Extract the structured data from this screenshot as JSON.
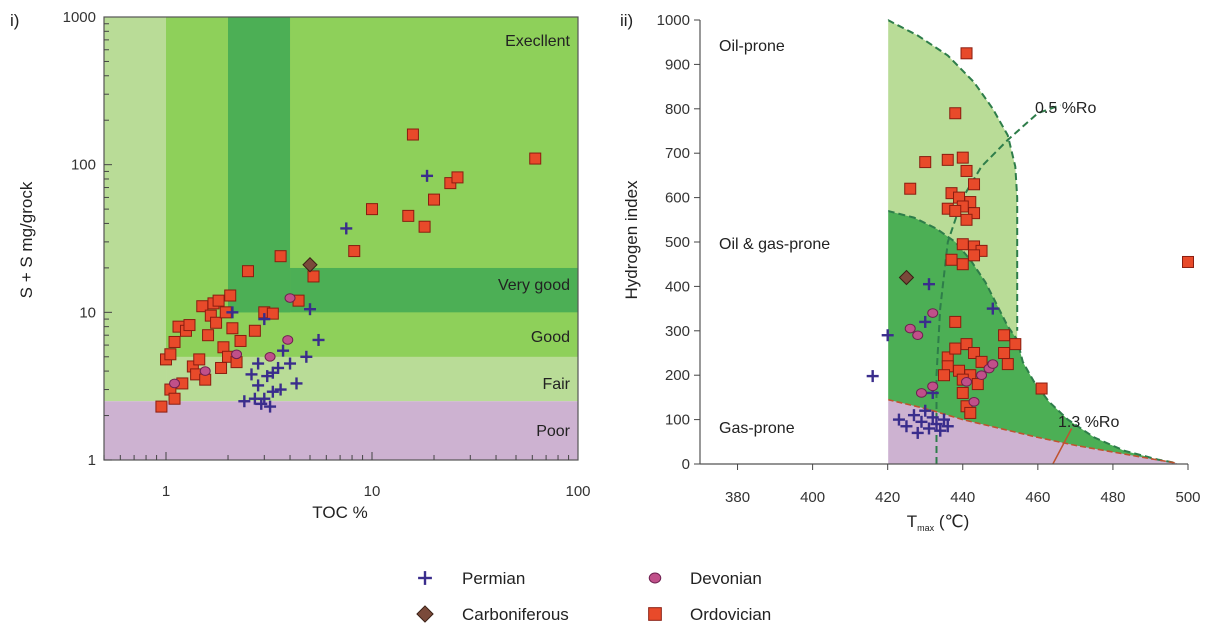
{
  "legend": [
    {
      "name": "Permian",
      "marker": "plus",
      "color": "#3a2d8c"
    },
    {
      "name": "Devonian",
      "marker": "circle",
      "color": "#c0508a"
    },
    {
      "name": "Carboniferous",
      "marker": "diamond",
      "color": "#7a4a3a"
    },
    {
      "name": "Ordovician",
      "marker": "square",
      "color": "#e84a2a"
    }
  ],
  "colors": {
    "pale_green": "#b9dc97",
    "mid_green": "#8ed05a",
    "dark_green": "#4caf55",
    "purple": "#cdb2d1",
    "dashed_line": "#2e7d4a",
    "square_fill": "#e84a2a",
    "square_edge": "#8a1d10"
  },
  "chart_data": [
    {
      "type": "scatter",
      "panel_label": "i)",
      "xlabel": "TOC %",
      "ylabel": "S + S mg/grock",
      "xscale": "log",
      "yscale": "log",
      "xlim": [
        0.5,
        100
      ],
      "ylim": [
        1,
        1000
      ],
      "x_ticks": [
        "1",
        "10",
        "100"
      ],
      "y_ticks": [
        "1",
        "10",
        "100",
        "1000"
      ],
      "zones": [
        "Execllent",
        "Very good",
        "Good",
        "Fair",
        "Poor"
      ],
      "series": [
        {
          "name": "Ordovician",
          "points": [
            [
              0.95,
              2.3
            ],
            [
              1.0,
              4.8
            ],
            [
              1.05,
              5.2
            ],
            [
              1.05,
              3.0
            ],
            [
              1.1,
              2.6
            ],
            [
              1.1,
              6.3
            ],
            [
              1.15,
              8.0
            ],
            [
              1.2,
              3.3
            ],
            [
              1.25,
              7.5
            ],
            [
              1.3,
              8.2
            ],
            [
              1.35,
              4.3
            ],
            [
              1.4,
              3.8
            ],
            [
              1.45,
              4.8
            ],
            [
              1.5,
              11.0
            ],
            [
              1.55,
              3.5
            ],
            [
              1.6,
              7.0
            ],
            [
              1.65,
              9.5
            ],
            [
              1.7,
              11.5
            ],
            [
              1.75,
              8.5
            ],
            [
              1.8,
              12.0
            ],
            [
              1.85,
              4.2
            ],
            [
              1.9,
              5.8
            ],
            [
              1.95,
              10.0
            ],
            [
              2.0,
              5.0
            ],
            [
              2.05,
              13.0
            ],
            [
              2.1,
              7.8
            ],
            [
              2.2,
              4.6
            ],
            [
              2.3,
              6.4
            ],
            [
              2.5,
              19.0
            ],
            [
              2.7,
              7.5
            ],
            [
              3.0,
              10.0
            ],
            [
              3.3,
              9.8
            ],
            [
              3.6,
              24.0
            ],
            [
              4.4,
              12.0
            ],
            [
              5.2,
              17.5
            ],
            [
              8.2,
              26.0
            ],
            [
              10.0,
              50.0
            ],
            [
              15.0,
              45.0
            ],
            [
              15.8,
              160.0
            ],
            [
              18.0,
              38.0
            ],
            [
              20.0,
              58.0
            ],
            [
              24.0,
              75.0
            ],
            [
              26.0,
              82.0
            ],
            [
              62.0,
              110.0
            ]
          ]
        },
        {
          "name": "Permian",
          "points": [
            [
              2.1,
              10.0
            ],
            [
              2.4,
              2.5
            ],
            [
              2.6,
              3.8
            ],
            [
              2.7,
              2.6
            ],
            [
              2.8,
              4.5
            ],
            [
              2.8,
              3.2
            ],
            [
              2.9,
              2.4
            ],
            [
              3.0,
              2.6
            ],
            [
              3.0,
              9.0
            ],
            [
              3.1,
              3.7
            ],
            [
              3.2,
              2.3
            ],
            [
              3.3,
              2.9
            ],
            [
              3.3,
              3.9
            ],
            [
              3.5,
              4.2
            ],
            [
              3.6,
              3.0
            ],
            [
              3.7,
              5.5
            ],
            [
              4.0,
              4.5
            ],
            [
              4.3,
              3.3
            ],
            [
              4.8,
              5.0
            ],
            [
              5.0,
              10.5
            ],
            [
              5.5,
              6.5
            ],
            [
              7.5,
              37.0
            ],
            [
              18.5,
              84.0
            ]
          ]
        },
        {
          "name": "Devonian",
          "points": [
            [
              1.1,
              3.3
            ],
            [
              1.55,
              4.0
            ],
            [
              2.2,
              5.2
            ],
            [
              3.2,
              5.0
            ],
            [
              3.9,
              6.5
            ],
            [
              4.0,
              12.5
            ]
          ]
        },
        {
          "name": "Carboniferous",
          "points": [
            [
              5.0,
              21.0
            ]
          ]
        }
      ]
    },
    {
      "type": "scatter",
      "panel_label": "ii)",
      "xlabel_main": "T",
      "xlabel_sub": "max",
      "xlabel_unit": " (℃)",
      "ylabel": "Hydrogen index",
      "xlim": [
        370,
        500
      ],
      "ylim": [
        0,
        1000
      ],
      "x_ticks": [
        "380",
        "400",
        "420",
        "440",
        "460",
        "480",
        "500"
      ],
      "y_ticks": [
        "0",
        "100",
        "200",
        "300",
        "400",
        "500",
        "600",
        "700",
        "800",
        "900",
        "1000"
      ],
      "zones": [
        "Oil-prone",
        "Oil & gas-prone",
        "Gas-prone"
      ],
      "annotations": [
        "0.5 %Ro",
        "1.3 %Ro"
      ],
      "series": [
        {
          "name": "Ordovician",
          "points": [
            [
              441,
              925
            ],
            [
              438,
              790
            ],
            [
              436,
              685
            ],
            [
              430,
              680
            ],
            [
              426,
              620
            ],
            [
              440,
              690
            ],
            [
              441,
              660
            ],
            [
              443,
              630
            ],
            [
              437,
              610
            ],
            [
              439,
              600
            ],
            [
              442,
              590
            ],
            [
              440,
              580
            ],
            [
              436,
              575
            ],
            [
              438,
              570
            ],
            [
              443,
              565
            ],
            [
              441,
              550
            ],
            [
              440,
              495
            ],
            [
              443,
              490
            ],
            [
              445,
              480
            ],
            [
              443,
              470
            ],
            [
              437,
              460
            ],
            [
              440,
              450
            ],
            [
              438,
              320
            ],
            [
              451,
              290
            ],
            [
              454,
              270
            ],
            [
              451,
              250
            ],
            [
              452,
              225
            ],
            [
              436,
              240
            ],
            [
              438,
              260
            ],
            [
              441,
              270
            ],
            [
              443,
              250
            ],
            [
              445,
              230
            ],
            [
              436,
              220
            ],
            [
              439,
              210
            ],
            [
              442,
              200
            ],
            [
              435,
              200
            ],
            [
              440,
              190
            ],
            [
              444,
              180
            ],
            [
              440,
              160
            ],
            [
              441,
              130
            ],
            [
              442,
              115
            ],
            [
              461,
              170
            ],
            [
              500,
              455
            ]
          ]
        },
        {
          "name": "Permian",
          "points": [
            [
              416,
              198
            ],
            [
              420,
              290
            ],
            [
              431,
              405
            ],
            [
              430,
              320
            ],
            [
              448,
              350
            ],
            [
              432,
              160
            ],
            [
              423,
              100
            ],
            [
              425,
              85
            ],
            [
              427,
              110
            ],
            [
              429,
              95
            ],
            [
              430,
              120
            ],
            [
              431,
              80
            ],
            [
              432,
              105
            ],
            [
              433,
              90
            ],
            [
              434,
              75
            ],
            [
              428,
              70
            ],
            [
              435,
              100
            ],
            [
              436,
              85
            ]
          ]
        },
        {
          "name": "Devonian",
          "points": [
            [
              426,
              305
            ],
            [
              428,
              290
            ],
            [
              432,
              340
            ],
            [
              443,
              140
            ],
            [
              441,
              185
            ],
            [
              445,
              200
            ],
            [
              447,
              215
            ],
            [
              448,
              225
            ],
            [
              429,
              160
            ],
            [
              432,
              175
            ]
          ]
        },
        {
          "name": "Carboniferous",
          "points": [
            [
              425,
              420
            ]
          ]
        }
      ]
    }
  ]
}
